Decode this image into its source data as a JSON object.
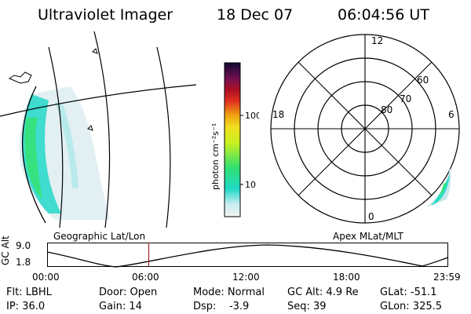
{
  "header": {
    "title": "Ultraviolet Imager",
    "date": "18 Dec 07",
    "time": "06:04:56 UT"
  },
  "colorbar": {
    "unit_label": "photon cm⁻²s⁻¹",
    "ticks": [
      "100",
      "10"
    ]
  },
  "polar_plot": {
    "mlt_labels": {
      "top": "12",
      "left": "18",
      "right": "6",
      "bottom": "0"
    },
    "lat_labels": [
      "60",
      "70",
      "80"
    ]
  },
  "timeline": {
    "left_title": "Geographic Lat/Lon",
    "right_title": "Apex MLat/MLT",
    "y_axis_label": "GC Alt",
    "y_max": "9.0",
    "y_min": "1.8",
    "x_ticks": [
      "00:00",
      "06:00",
      "12:00",
      "18:00",
      "23:59"
    ],
    "current_time_marker_hours": 6.08
  },
  "status": {
    "filter": "Flt: LBHL",
    "ip": "IP: 36.0",
    "door": "Door: Open",
    "gain": "Gain: 14",
    "mode": "Mode: Normal",
    "dsp": "Dsp:    -3.9",
    "gc_alt": "GC Alt: 4.9 Re",
    "seq": "Seq: 39",
    "glat": "GLat: -51.1",
    "glon": "GLon: 325.5"
  },
  "colors": {
    "line": "#000000",
    "marker": "#a02020",
    "aurora_low": "#c9e0e8",
    "aurora_mid": "#20d8c8",
    "aurora_high": "#30e060"
  }
}
